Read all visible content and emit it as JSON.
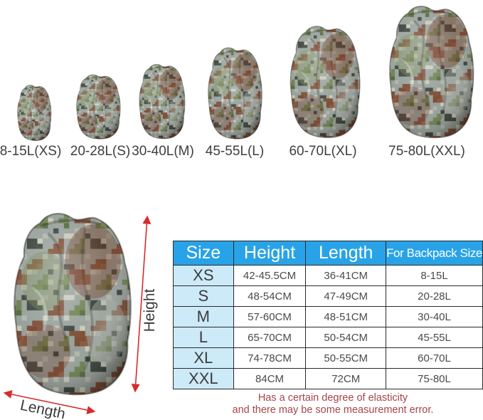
{
  "size_row": {
    "items": [
      {
        "label": "8-15L(XS)"
      },
      {
        "label": "20-28L(S)"
      },
      {
        "label": "30-40L(M)"
      },
      {
        "label": "45-55L(L)"
      },
      {
        "label": "60-70L(XL)"
      },
      {
        "label": "75-80L(XXL)"
      }
    ]
  },
  "dimension_diagram": {
    "height_label": "Height",
    "length_label": "Length"
  },
  "size_table": {
    "headers": [
      "Size",
      "Height",
      "Length",
      "For Backpack Size"
    ],
    "rows": [
      [
        "XS",
        "42-45.5CM",
        "36-41CM",
        "8-15L"
      ],
      [
        "S",
        "48-54CM",
        "47-49CM",
        "20-28L"
      ],
      [
        "M",
        "57-60CM",
        "48-51CM",
        "30-40L"
      ],
      [
        "L",
        "65-70CM",
        "50-54CM",
        "45-55L"
      ],
      [
        "XL",
        "74-78CM",
        "50-55CM",
        "60-70L"
      ],
      [
        "XXL",
        "84CM",
        "72CM",
        "75-80L"
      ]
    ]
  },
  "note": {
    "line1": "Has a certain degree of elasticity",
    "line2": "and there may be some measurement error."
  },
  "colors": {
    "table_header_bg": "#28a3e8",
    "size_column_bg": "#cdeaf8",
    "note_text": "#a8434a",
    "arrow_red": "#d92b2b",
    "camo_gray": "#97a09a",
    "camo_green": "#6d8050",
    "camo_brown": "#7c4b33",
    "camo_dark": "#3a423b"
  }
}
